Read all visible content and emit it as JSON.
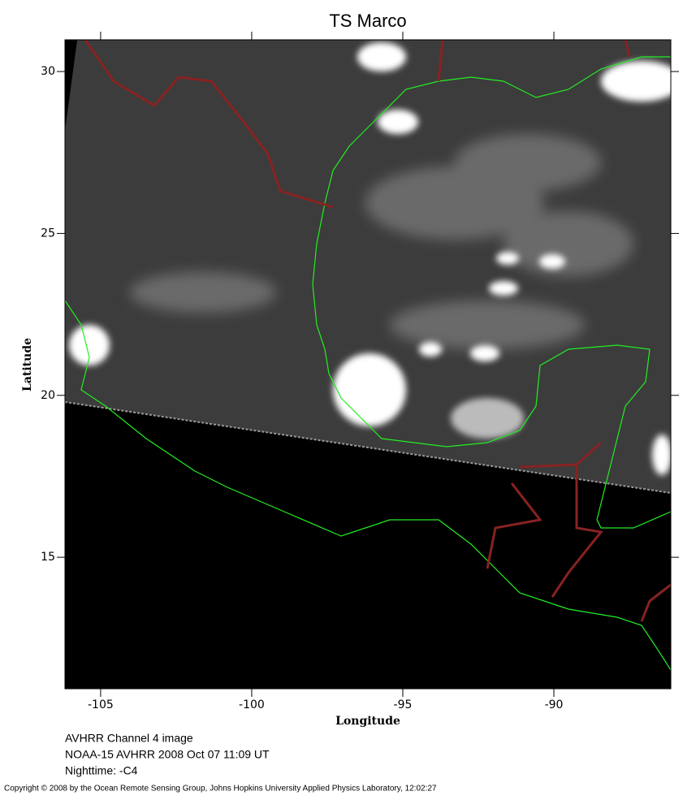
{
  "map": {
    "title": "TS Marco",
    "xlabel": "Longitude",
    "ylabel": "Latitude",
    "xlim": [
      -106.18,
      -86.13
    ],
    "ylim": [
      10.94,
      30.98
    ],
    "xticks": [
      -105,
      -100,
      -95,
      -90
    ],
    "yticks": [
      15,
      20,
      25,
      30
    ]
  },
  "notes": [
    "AVHRR Channel 4 image",
    "NOAA-15 AVHRR 2008 Oct 07 11:09 UT",
    "Nighttime: -C4"
  ],
  "copyright": "Copyright © 2008 by the Ocean Remote Sensing Group, Johns Hopkins University Applied Physics Laboratory, 12:02:27"
}
